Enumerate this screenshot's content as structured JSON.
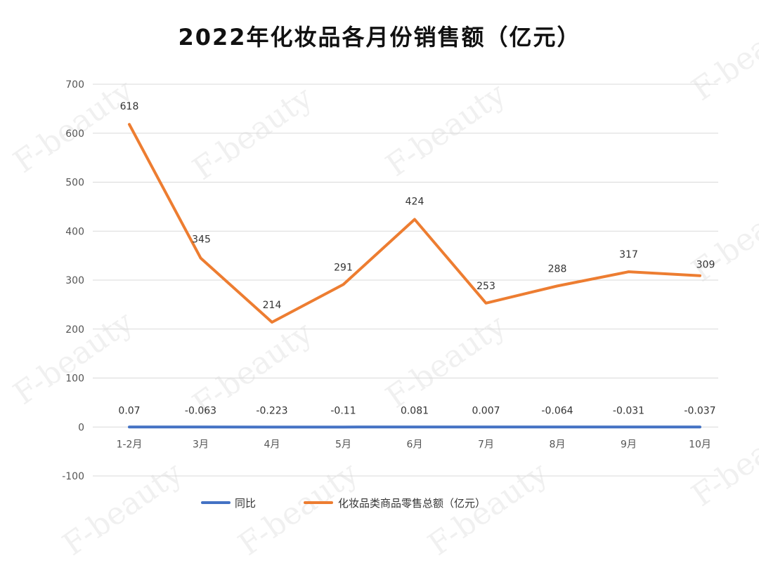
{
  "chart_data": {
    "type": "line",
    "title": "2022年化妆品各月份销售额（亿元）",
    "categories": [
      "1-2月",
      "3月",
      "4月",
      "5月",
      "6月",
      "7月",
      "8月",
      "9月",
      "10月"
    ],
    "series": [
      {
        "name": "同比",
        "color": "#4472C4",
        "values": [
          0.07,
          -0.063,
          -0.223,
          -0.11,
          0.081,
          0.007,
          -0.064,
          -0.031,
          -0.037
        ],
        "labels": [
          "0.07",
          "-0.063",
          "-0.223",
          "-0.11",
          "0.081",
          "0.007",
          "-0.064",
          "-0.031",
          "-0.037"
        ]
      },
      {
        "name": "化妆品类商品零售总额（亿元）",
        "color": "#ED7D31",
        "values": [
          618,
          345,
          214,
          291,
          424,
          253,
          288,
          317,
          309
        ],
        "labels": [
          "618",
          "345",
          "214",
          "291",
          "424",
          "253",
          "288",
          "317",
          "309"
        ]
      }
    ],
    "ylim": [
      -100,
      700
    ],
    "yticks": [
      "-100",
      "0",
      "100",
      "200",
      "300",
      "400",
      "500",
      "600",
      "700"
    ],
    "grid": true,
    "legend": "bottom"
  },
  "watermark": "F-beauty"
}
